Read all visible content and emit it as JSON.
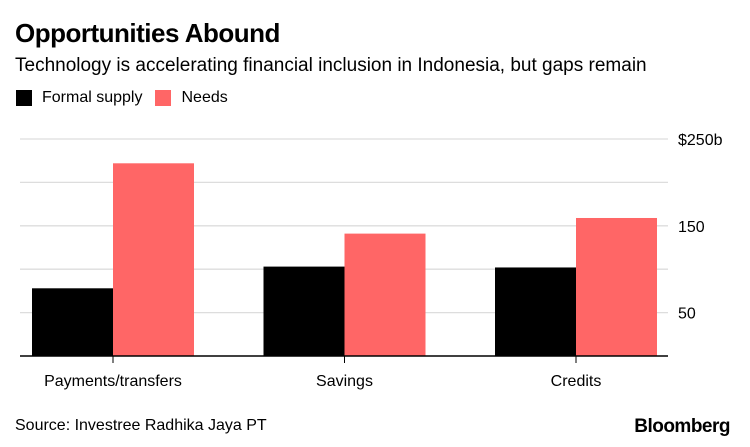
{
  "chart_data": {
    "type": "bar",
    "title": "Opportunities Abound",
    "subtitle": "Technology is accelerating financial inclusion in Indonesia, but gaps remain",
    "categories": [
      "Payments/transfers",
      "Savings",
      "Credits"
    ],
    "series": [
      {
        "name": "Formal supply",
        "color": "#000000",
        "values": [
          78,
          103,
          102
        ]
      },
      {
        "name": "Needs",
        "color": "#ff6666",
        "values": [
          222,
          141,
          159
        ]
      }
    ],
    "ylim": [
      0,
      250
    ],
    "yticks": [
      0,
      50,
      100,
      150,
      200,
      250
    ],
    "ytick_labels": [
      {
        "value": 250,
        "label": "$250b"
      },
      {
        "value": 150,
        "label": "150"
      },
      {
        "value": 50,
        "label": "50"
      }
    ],
    "ylabel": "",
    "xlabel": "",
    "grid": true,
    "y_axis_position": "right",
    "legend_position": "top-left",
    "source": "Source: Investree Radhika Jaya PT",
    "brand": "Bloomberg"
  },
  "colors": {
    "grid": "#dddddd",
    "axis": "#000000"
  }
}
